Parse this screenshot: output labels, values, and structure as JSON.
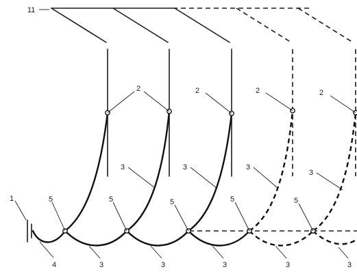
{
  "labels": {
    "top_bus": "11",
    "source": "1",
    "contact": "2",
    "curve": "3",
    "bottom_lead": "4",
    "junction": "5"
  },
  "colors": {
    "stroke": "#1a1a1a",
    "background": "#ffffff"
  }
}
